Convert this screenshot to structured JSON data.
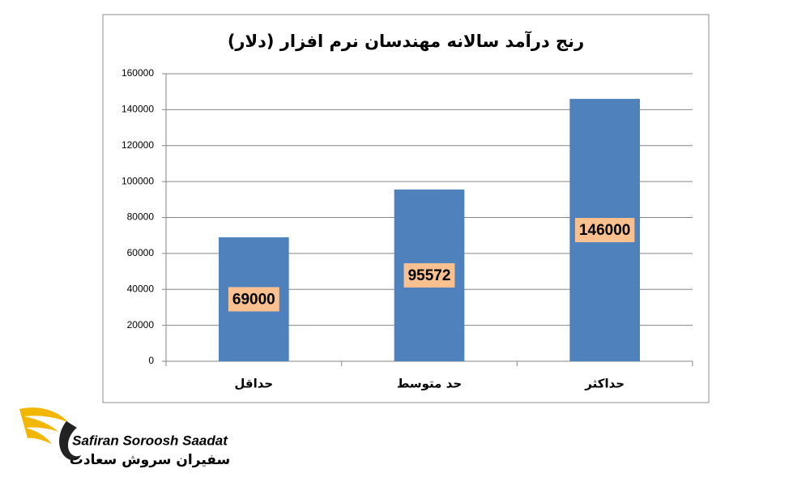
{
  "chart_data": {
    "type": "bar",
    "title": "رنج درآمد سالانه مهندسان نرم افزار (دلار)",
    "categories": [
      "حداقل",
      "حد متوسط",
      "حداکثر"
    ],
    "values": [
      69000,
      95572,
      146000
    ],
    "color": "#4f81bd",
    "label_color": "#fac090",
    "ylim": [
      0,
      160000
    ],
    "yticks": [
      0,
      20000,
      40000,
      60000,
      80000,
      100000,
      120000,
      140000,
      160000
    ],
    "grid": true
  },
  "logo": {
    "name": "Safiran Soroosh Saadat",
    "name_fa": "سفیران سروش سعادت"
  }
}
